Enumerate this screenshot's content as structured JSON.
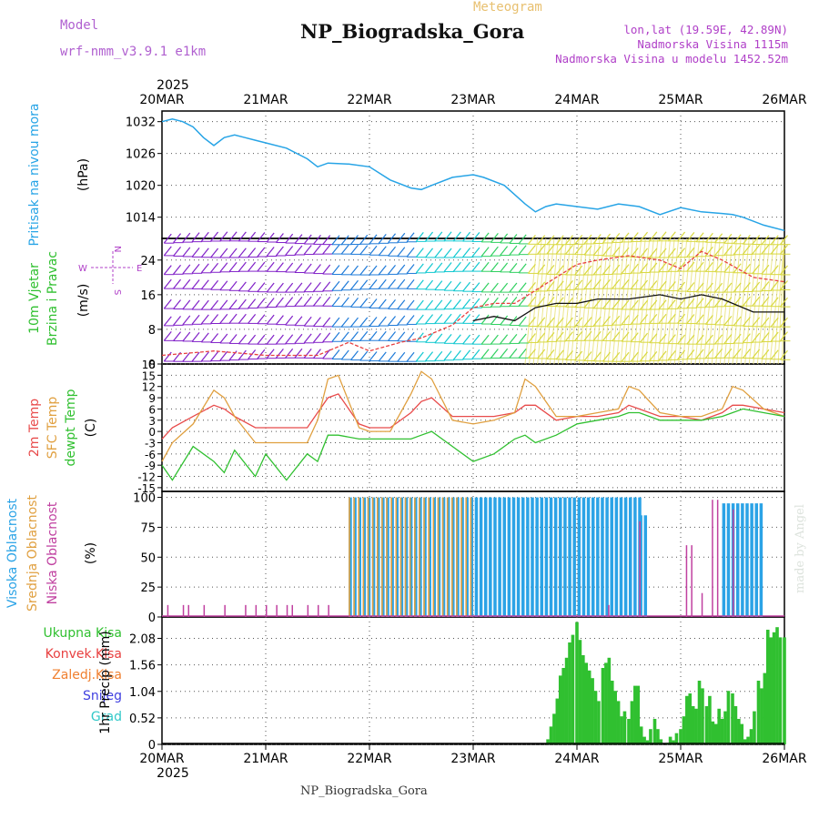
{
  "header": {
    "title": "NP_Biogradska_Gora",
    "subtitle": "Meteogram",
    "model_label": "Model",
    "model_name": "wrf-nmm_v3.9.1 e1km",
    "location_lines": [
      "lon,lat (19.59E, 42.89N)",
      "Nadmorska Visina 1115m",
      "Nadmorska Visina u modelu 1452.52m"
    ]
  },
  "footer": {
    "station": "NP_Biogradska_Gora",
    "watermark": "made by Angel"
  },
  "time_axis": {
    "year": "2025",
    "ticks": [
      "20MAR",
      "21MAR",
      "22MAR",
      "23MAR",
      "24MAR",
      "25MAR",
      "26MAR"
    ]
  },
  "chart_data": [
    {
      "type": "line",
      "id": "pressure",
      "ylabel_lines": [
        "Pritisak na nivou mora",
        "(hPa)"
      ],
      "yticks": [
        "1014",
        "1020",
        "1026",
        "1032"
      ],
      "ylim": [
        1010,
        1034
      ],
      "x_days": [
        0.0,
        0.1,
        0.2,
        0.3,
        0.4,
        0.5,
        0.6,
        0.7,
        0.8,
        0.9,
        1.0,
        1.2,
        1.4,
        1.5,
        1.6,
        1.8,
        2.0,
        2.2,
        2.4,
        2.5,
        2.6,
        2.8,
        3.0,
        3.1,
        3.3,
        3.5,
        3.6,
        3.7,
        3.8,
        4.0,
        4.2,
        4.4,
        4.6,
        4.8,
        5.0,
        5.2,
        5.4,
        5.5,
        5.6,
        5.8,
        6.0
      ],
      "series": [
        {
          "color": "#27a4e6",
          "values": [
            1032,
            1032.5,
            1032,
            1031,
            1029,
            1027.5,
            1029,
            1029.5,
            1029,
            1028.5,
            1028,
            1027,
            1025,
            1023.5,
            1024.2,
            1024,
            1023.5,
            1021,
            1019.5,
            1019.2,
            1020,
            1021.5,
            1022,
            1021.5,
            1020,
            1016.5,
            1015,
            1016,
            1016.5,
            1016,
            1015.5,
            1016.5,
            1016,
            1014.5,
            1015.8,
            1015,
            1014.7,
            1014.5,
            1014,
            1012.5,
            1011.5
          ]
        }
      ]
    },
    {
      "type": "barbs",
      "id": "wind",
      "ylabel_lines": [
        "10m Vjetar",
        "Brzina i Pravac",
        "(m/s)"
      ],
      "compass_labels": [
        "N",
        "S",
        "W",
        "E"
      ],
      "yticks": [
        "0",
        "8",
        "16",
        "24"
      ],
      "ylim": [
        0,
        29
      ],
      "barb_levels": [
        1,
        5,
        9,
        13,
        17,
        21,
        25,
        28
      ],
      "x_days": [
        0,
        0.5,
        1.0,
        1.5,
        1.8,
        2.0,
        2.3,
        2.5,
        2.8,
        3.0,
        3.2,
        3.4,
        3.6,
        3.8,
        4.0,
        4.2,
        4.5,
        4.8,
        5.0,
        5.2,
        5.4,
        5.7,
        6.0
      ],
      "series": [
        {
          "name": "speed",
          "color": "#111111",
          "values": [
            null,
            null,
            null,
            null,
            null,
            null,
            null,
            null,
            null,
            10,
            11,
            10,
            13,
            14,
            14,
            15,
            15,
            16,
            15,
            16,
            15,
            12,
            12
          ]
        },
        {
          "name": "gusts",
          "color": "#e84040",
          "values": [
            2,
            3,
            2,
            2,
            5,
            3,
            5,
            6,
            9,
            13,
            14,
            14,
            17,
            20,
            23,
            24,
            25,
            24,
            22,
            26,
            24,
            20,
            19
          ]
        }
      ],
      "direction_colors": [
        {
          "from": 0.0,
          "to": 1.6,
          "color": "#8020c8"
        },
        {
          "from": 1.6,
          "to": 2.4,
          "color": "#1e7ad8"
        },
        {
          "from": 2.4,
          "to": 3.0,
          "color": "#10c8d0"
        },
        {
          "from": 3.0,
          "to": 3.5,
          "color": "#30d060"
        },
        {
          "from": 3.5,
          "to": 6.0,
          "color": "#d8d840"
        }
      ]
    },
    {
      "type": "line",
      "id": "temperature",
      "ylabel_lines": [
        "2m Temp",
        "SFC Temp",
        "dewpt Temp",
        "(C)"
      ],
      "yticks": [
        "-15",
        "-12",
        "-9",
        "-6",
        "-3",
        "0",
        "3",
        "6",
        "9",
        "12",
        "15",
        "18"
      ],
      "ylim": [
        -16,
        18
      ],
      "x_days": [
        0.0,
        0.1,
        0.3,
        0.5,
        0.6,
        0.7,
        0.9,
        1.0,
        1.2,
        1.4,
        1.5,
        1.6,
        1.7,
        1.9,
        2.0,
        2.2,
        2.4,
        2.5,
        2.6,
        2.8,
        3.0,
        3.2,
        3.4,
        3.5,
        3.6,
        3.8,
        4.0,
        4.2,
        4.4,
        4.5,
        4.6,
        4.8,
        5.0,
        5.2,
        5.4,
        5.5,
        5.6,
        5.8,
        6.0
      ],
      "series": [
        {
          "name": "2m Temp",
          "color": "#e84b4b",
          "values": [
            -2,
            1,
            4,
            7,
            6,
            4,
            1,
            1,
            1,
            1,
            5,
            9,
            10,
            2,
            1,
            1,
            5,
            8,
            9,
            4,
            4,
            4,
            5,
            7,
            7,
            3,
            4,
            4,
            5,
            7,
            6,
            4,
            4,
            3,
            5,
            7,
            7,
            6,
            5
          ]
        },
        {
          "name": "SFC Temp",
          "color": "#e0a040",
          "values": [
            -8,
            -3,
            2,
            11,
            9,
            4,
            -3,
            -3,
            -3,
            -3,
            3,
            14,
            15,
            1,
            0,
            0,
            10,
            16,
            14,
            3,
            2,
            3,
            5,
            14,
            12,
            4,
            4,
            5,
            6,
            12,
            11,
            5,
            4,
            4,
            6,
            12,
            11,
            6,
            4
          ]
        },
        {
          "name": "dewpt Temp",
          "color": "#30c030",
          "values": [
            -9,
            -13,
            -4,
            -8,
            -11,
            -5,
            -12,
            -6,
            -13,
            -6,
            -8,
            -1,
            -1,
            -2,
            -2,
            -2,
            -2,
            -1,
            0,
            -4,
            -8,
            -6,
            -2,
            -1,
            -3,
            -1,
            2,
            3,
            4,
            5,
            5,
            3,
            3,
            3,
            4,
            5,
            6,
            5,
            4
          ]
        }
      ]
    },
    {
      "type": "bar",
      "id": "clouds",
      "ylabel_lines": [
        "Visoka Oblacnost",
        "Srednja Oblacnost",
        "Niska Oblacnost",
        "(%)"
      ],
      "yticks": [
        "0",
        "25",
        "50",
        "75",
        "100"
      ],
      "ylim": [
        0,
        105
      ],
      "series": [
        {
          "name": "Visoka Oblacnost",
          "color": "#2ba3e6"
        },
        {
          "name": "Srednja Oblacnost",
          "color": "#e0a040"
        },
        {
          "name": "Niska Oblacnost",
          "color": "#c040a0"
        }
      ],
      "high_blocks": [
        [
          1.8,
          4.6,
          100
        ],
        [
          4.6,
          4.65,
          85
        ],
        [
          5.4,
          5.8,
          95
        ]
      ],
      "mid_blocks": [
        [
          1.8,
          3.0,
          100
        ]
      ],
      "low_spikes": [
        [
          0.05,
          10
        ],
        [
          0.2,
          10
        ],
        [
          0.25,
          10
        ],
        [
          0.4,
          10
        ],
        [
          0.6,
          10
        ],
        [
          0.8,
          10
        ],
        [
          0.9,
          10
        ],
        [
          1.0,
          10
        ],
        [
          1.1,
          10
        ],
        [
          1.2,
          10
        ],
        [
          1.25,
          10
        ],
        [
          1.4,
          10
        ],
        [
          1.5,
          10
        ],
        [
          1.6,
          10
        ],
        [
          4.3,
          10
        ],
        [
          4.6,
          80
        ],
        [
          5.05,
          60
        ],
        [
          5.1,
          60
        ],
        [
          5.2,
          20
        ],
        [
          5.3,
          98
        ],
        [
          5.35,
          98
        ],
        [
          5.5,
          90
        ]
      ]
    },
    {
      "type": "bar",
      "id": "precip",
      "ylabel_lines": [
        "1hr Precip (mm)"
      ],
      "yticks": [
        "0",
        "0.52",
        "1.04",
        "1.56",
        "2.08"
      ],
      "ylim": [
        0,
        2.5
      ],
      "legend": [
        {
          "label": "Ukupna Kisa",
          "color": "#30c030"
        },
        {
          "label": "Konvek.Kisa",
          "color": "#e84040"
        },
        {
          "label": "Zaledj.Kisa",
          "color": "#f08030"
        },
        {
          "label": "Snijeg",
          "color": "#4040e0"
        },
        {
          "label": "Grad",
          "color": "#30c8c8"
        }
      ],
      "x_days": [
        3.72,
        3.75,
        3.78,
        3.81,
        3.84,
        3.87,
        3.9,
        3.93,
        3.96,
        4.0,
        4.03,
        4.06,
        4.09,
        4.12,
        4.15,
        4.18,
        4.21,
        4.25,
        4.28,
        4.31,
        4.34,
        4.37,
        4.4,
        4.43,
        4.46,
        4.5,
        4.53,
        4.56,
        4.59,
        4.62,
        4.65,
        4.68,
        4.71,
        4.75,
        4.78,
        4.81,
        4.84,
        4.87,
        4.9,
        4.93,
        4.96,
        5.0,
        5.03,
        5.06,
        5.09,
        5.12,
        5.15,
        5.18,
        5.21,
        5.25,
        5.28,
        5.31,
        5.34,
        5.37,
        5.4,
        5.43,
        5.46,
        5.5,
        5.53,
        5.56,
        5.59,
        5.62,
        5.65,
        5.68,
        5.71,
        5.75,
        5.78,
        5.81,
        5.84,
        5.87,
        5.9,
        5.93,
        5.96,
        6.0
      ],
      "values": [
        0.1,
        0.35,
        0.6,
        0.9,
        1.35,
        1.5,
        1.7,
        2.0,
        2.15,
        2.4,
        2.05,
        1.75,
        1.6,
        1.45,
        1.3,
        1.05,
        0.85,
        1.5,
        1.6,
        1.7,
        1.25,
        1.05,
        0.85,
        0.55,
        0.65,
        0.5,
        0.85,
        1.15,
        1.15,
        0.35,
        0.15,
        0.08,
        0.3,
        0.5,
        0.3,
        0.1,
        0.0,
        0.03,
        0.15,
        0.08,
        0.22,
        0.3,
        0.55,
        0.95,
        1.0,
        0.75,
        0.7,
        1.25,
        1.1,
        0.75,
        0.95,
        0.45,
        0.4,
        0.7,
        0.5,
        0.65,
        1.05,
        1.0,
        0.75,
        0.5,
        0.4,
        0.1,
        0.15,
        0.3,
        0.65,
        1.25,
        1.1,
        1.4,
        2.25,
        2.1,
        2.2,
        2.3,
        2.1,
        2.1
      ]
    }
  ]
}
